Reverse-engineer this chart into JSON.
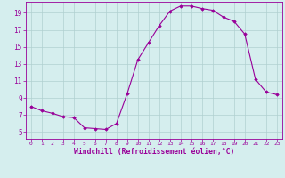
{
  "x": [
    0,
    1,
    2,
    3,
    4,
    5,
    6,
    7,
    8,
    9,
    10,
    11,
    12,
    13,
    14,
    15,
    16,
    17,
    18,
    19,
    20,
    21,
    22,
    23
  ],
  "y": [
    8.0,
    7.5,
    7.2,
    6.8,
    6.7,
    5.5,
    5.4,
    5.3,
    6.0,
    9.5,
    13.5,
    15.5,
    17.5,
    19.2,
    19.8,
    19.8,
    19.5,
    19.3,
    18.5,
    18.0,
    16.5,
    11.2,
    9.7,
    9.4
  ],
  "line_color": "#990099",
  "marker": "D",
  "marker_size": 1.8,
  "bg_color": "#d5eeee",
  "grid_color": "#b0d0d0",
  "xlabel": "Windchill (Refroidissement éolien,°C)",
  "xlabel_color": "#990099",
  "tick_color": "#990099",
  "yticks": [
    5,
    7,
    9,
    11,
    13,
    15,
    17,
    19
  ],
  "ylim": [
    4.2,
    20.3
  ],
  "xlim": [
    -0.5,
    23.5
  ]
}
